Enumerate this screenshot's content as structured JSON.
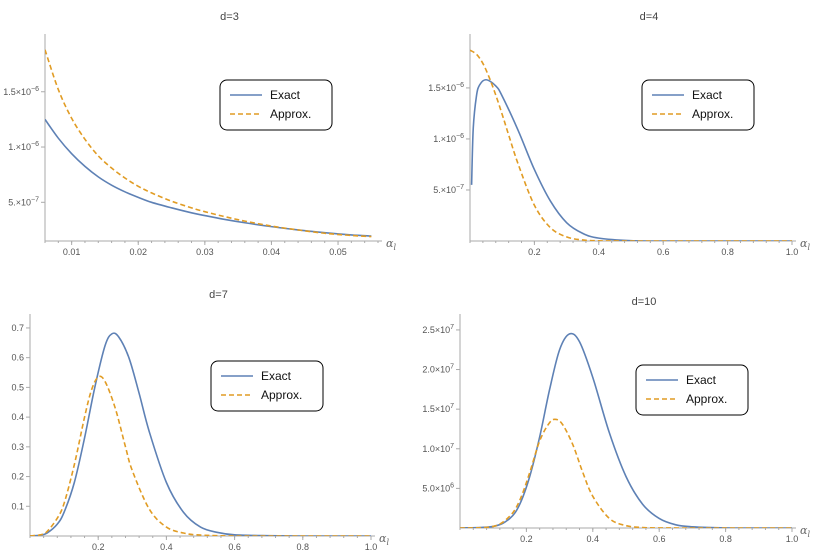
{
  "chart_data": [
    {
      "type": "line",
      "title": "d=3",
      "xlabel": "α",
      "xlabel_sub": "l",
      "xlim": [
        0.006,
        0.056
      ],
      "ylim": [
        1.5e-07,
        1.95e-06
      ],
      "xticks": [
        {
          "v": 0.01,
          "t": "0.01"
        },
        {
          "v": 0.02,
          "t": "0.02"
        },
        {
          "v": 0.03,
          "t": "0.03"
        },
        {
          "v": 0.04,
          "t": "0.04"
        },
        {
          "v": 0.05,
          "t": "0.05"
        }
      ],
      "yticks": [
        {
          "v": 5e-07,
          "t": "5.×10",
          "e": "−7"
        },
        {
          "v": 1e-06,
          "t": "1.×10",
          "e": "−6"
        },
        {
          "v": 1.5e-06,
          "t": "1.5×10",
          "e": "−6"
        }
      ],
      "legend": [
        "Exact",
        "Approx."
      ],
      "series": [
        {
          "name": "Exact",
          "x": [
            0.006,
            0.008,
            0.01,
            0.012,
            0.014,
            0.016,
            0.018,
            0.02,
            0.022,
            0.025,
            0.028,
            0.03,
            0.033,
            0.036,
            0.04,
            0.044,
            0.048,
            0.052,
            0.055
          ],
          "y": [
            1.25e-06,
            1.08e-06,
            9.4e-07,
            8.25e-07,
            7.3e-07,
            6.55e-07,
            5.95e-07,
            5.45e-07,
            5e-07,
            4.5e-07,
            4.05e-07,
            3.8e-07,
            3.45e-07,
            3.15e-07,
            2.8e-07,
            2.5e-07,
            2.25e-07,
            2.05e-07,
            1.95e-07
          ]
        },
        {
          "name": "Approx.",
          "x": [
            0.006,
            0.008,
            0.01,
            0.012,
            0.014,
            0.016,
            0.018,
            0.02,
            0.022,
            0.025,
            0.028,
            0.03,
            0.033,
            0.036,
            0.04,
            0.044,
            0.048,
            0.052,
            0.055
          ],
          "y": [
            1.88e-06,
            1.52e-06,
            1.26e-06,
            1.07e-06,
            9.2e-07,
            8.1e-07,
            7.2e-07,
            6.45e-07,
            5.85e-07,
            5.1e-07,
            4.5e-07,
            4.15e-07,
            3.7e-07,
            3.3e-07,
            2.85e-07,
            2.5e-07,
            2.2e-07,
            2e-07,
            1.9e-07
          ]
        }
      ]
    },
    {
      "type": "line",
      "title": "d=4",
      "xlabel": "α",
      "xlabel_sub": "l",
      "xlim": [
        0,
        1.0
      ],
      "ylim": [
        0,
        1.95e-06
      ],
      "xticks": [
        {
          "v": 0.2,
          "t": "0.2"
        },
        {
          "v": 0.4,
          "t": "0.4"
        },
        {
          "v": 0.6,
          "t": "0.6"
        },
        {
          "v": 0.8,
          "t": "0.8"
        },
        {
          "v": 1.0,
          "t": "1.0"
        }
      ],
      "yticks": [
        {
          "v": 5e-07,
          "t": "5.×10",
          "e": "−7"
        },
        {
          "v": 1e-06,
          "t": "1.×10",
          "e": "−6"
        },
        {
          "v": 1.5e-06,
          "t": "1.5×10",
          "e": "−6"
        }
      ],
      "legend": [
        "Exact",
        "Approx."
      ],
      "series": [
        {
          "name": "Exact",
          "x": [
            0.005,
            0.01,
            0.02,
            0.03,
            0.05,
            0.08,
            0.1,
            0.15,
            0.2,
            0.25,
            0.3,
            0.35,
            0.4,
            0.5,
            0.6,
            0.8,
            1.0
          ],
          "y": [
            5.5e-07,
            1.1e-06,
            1.42e-06,
            1.53e-06,
            1.58e-06,
            1.52e-06,
            1.42e-06,
            1.08e-06,
            7e-07,
            3.9e-07,
            1.8e-07,
            7.5e-08,
            2.8e-08,
            3e-09,
            0,
            0,
            0
          ]
        },
        {
          "name": "Approx.",
          "x": [
            0,
            0.02,
            0.04,
            0.06,
            0.08,
            0.1,
            0.12,
            0.15,
            0.2,
            0.25,
            0.3,
            0.35,
            0.4,
            0.5,
            0.6,
            0.8,
            1.0
          ],
          "y": [
            1.87e-06,
            1.83e-06,
            1.74e-06,
            1.6e-06,
            1.43e-06,
            1.24e-06,
            1.04e-06,
            7.5e-07,
            3.5e-07,
            1.3e-07,
            4e-08,
            1e-08,
            2e-09,
            0,
            0,
            0,
            0
          ]
        }
      ]
    },
    {
      "type": "line",
      "title": "d=7",
      "xlabel": "α",
      "xlabel_sub": "l",
      "xlim": [
        0,
        1.0
      ],
      "ylim": [
        0,
        0.72
      ],
      "xticks": [
        {
          "v": 0.2,
          "t": "0.2"
        },
        {
          "v": 0.4,
          "t": "0.4"
        },
        {
          "v": 0.6,
          "t": "0.6"
        },
        {
          "v": 0.8,
          "t": "0.8"
        },
        {
          "v": 1.0,
          "t": "1.0"
        }
      ],
      "yticks": [
        {
          "v": 0.1,
          "t": "0.1"
        },
        {
          "v": 0.2,
          "t": "0.2"
        },
        {
          "v": 0.3,
          "t": "0.3"
        },
        {
          "v": 0.4,
          "t": "0.4"
        },
        {
          "v": 0.5,
          "t": "0.5"
        },
        {
          "v": 0.6,
          "t": "0.6"
        },
        {
          "v": 0.7,
          "t": "0.7"
        }
      ],
      "legend": [
        "Exact",
        "Approx."
      ],
      "series": [
        {
          "name": "Exact",
          "x": [
            0,
            0.03,
            0.05,
            0.08,
            0.1,
            0.13,
            0.16,
            0.19,
            0.22,
            0.24,
            0.26,
            0.29,
            0.32,
            0.35,
            0.4,
            0.45,
            0.5,
            0.55,
            0.6,
            0.7,
            0.8,
            1.0
          ],
          "y": [
            0,
            0.003,
            0.01,
            0.04,
            0.08,
            0.18,
            0.33,
            0.5,
            0.64,
            0.68,
            0.67,
            0.6,
            0.48,
            0.35,
            0.18,
            0.08,
            0.03,
            0.012,
            0.004,
            0.001,
            0,
            0
          ]
        },
        {
          "name": "Approx.",
          "x": [
            0,
            0.03,
            0.05,
            0.08,
            0.1,
            0.13,
            0.16,
            0.18,
            0.2,
            0.22,
            0.25,
            0.28,
            0.3,
            0.35,
            0.4,
            0.45,
            0.5,
            0.6,
            0.7,
            0.8,
            1.0
          ],
          "y": [
            0,
            0.004,
            0.015,
            0.06,
            0.11,
            0.24,
            0.4,
            0.49,
            0.535,
            0.52,
            0.43,
            0.3,
            0.22,
            0.09,
            0.03,
            0.01,
            0.003,
            0,
            0,
            0,
            0
          ]
        }
      ]
    },
    {
      "type": "line",
      "title": "d=10",
      "xlabel": "α",
      "xlabel_sub": "l",
      "xlim": [
        0,
        1.0
      ],
      "ylim": [
        0,
        26000000.0
      ],
      "xticks": [
        {
          "v": 0.2,
          "t": "0.2"
        },
        {
          "v": 0.4,
          "t": "0.4"
        },
        {
          "v": 0.6,
          "t": "0.6"
        },
        {
          "v": 0.8,
          "t": "0.8"
        },
        {
          "v": 1.0,
          "t": "1.0"
        }
      ],
      "yticks": [
        {
          "v": 5000000.0,
          "t": "5.0×10",
          "e": "6"
        },
        {
          "v": 10000000.0,
          "t": "1.0×10",
          "e": "7"
        },
        {
          "v": 15000000.0,
          "t": "1.5×10",
          "e": "7"
        },
        {
          "v": 20000000.0,
          "t": "2.0×10",
          "e": "7"
        },
        {
          "v": 25000000.0,
          "t": "2.5×10",
          "e": "7"
        }
      ],
      "legend": [
        "Exact",
        "Approx."
      ],
      "series": [
        {
          "name": "Exact",
          "x": [
            0,
            0.1,
            0.15,
            0.18,
            0.21,
            0.24,
            0.27,
            0.3,
            0.33,
            0.36,
            0.4,
            0.45,
            0.5,
            0.55,
            0.6,
            0.65,
            0.7,
            0.8,
            0.9,
            1.0
          ],
          "y": [
            0,
            200000.0,
            1200000.0,
            3000000.0,
            6500000.0,
            11500000.0,
            17500000.0,
            22500000.0,
            24500000.0,
            23500000.0,
            19000000.0,
            12000000.0,
            6500000.0,
            3000000.0,
            1200000.0,
            400000.0,
            150000.0,
            10000.0,
            0,
            0
          ]
        },
        {
          "name": "Approx.",
          "x": [
            0,
            0.1,
            0.15,
            0.18,
            0.21,
            0.24,
            0.27,
            0.29,
            0.31,
            0.34,
            0.37,
            0.4,
            0.45,
            0.5,
            0.55,
            0.6,
            0.7,
            0.8,
            1.0
          ],
          "y": [
            0,
            200000.0,
            1500000.0,
            3500000.0,
            7000000.0,
            11000000.0,
            13300000.0,
            13700000.0,
            13000000.0,
            10500000.0,
            7000000.0,
            4000000.0,
            1200000.0,
            300000.0,
            60000.0,
            10000.0,
            0,
            0,
            0
          ]
        }
      ]
    }
  ],
  "colors": {
    "exact": "#5e81b5",
    "approx": "#e19c24",
    "axis": "#aaaaaa"
  }
}
